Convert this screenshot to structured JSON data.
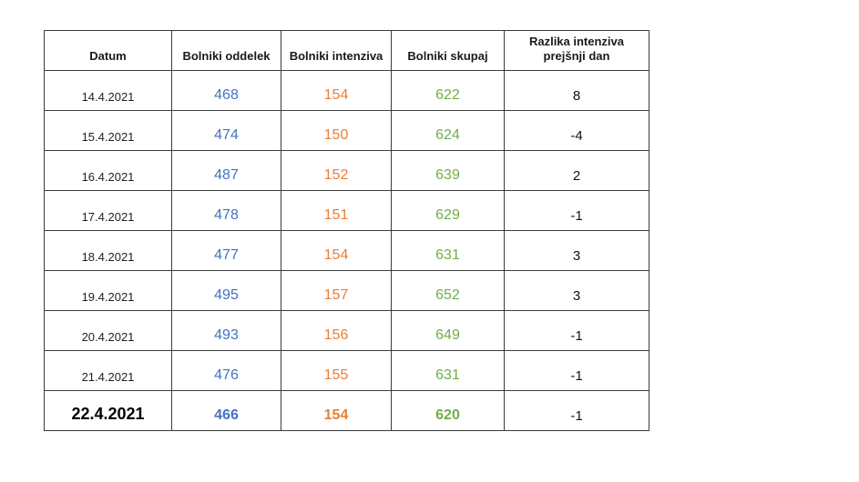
{
  "table": {
    "headers": [
      "Datum",
      "Bolniki oddelek",
      "Bolniki intenziva",
      "Bolniki skupaj",
      "Razlika intenziva prejšnji dan"
    ],
    "rows": [
      {
        "datum": "14.4.2021",
        "oddelek": "468",
        "intenziva": "154",
        "skupaj": "622",
        "razlika": "8"
      },
      {
        "datum": "15.4.2021",
        "oddelek": "474",
        "intenziva": "150",
        "skupaj": "624",
        "razlika": "-4"
      },
      {
        "datum": "16.4.2021",
        "oddelek": "487",
        "intenziva": "152",
        "skupaj": "639",
        "razlika": "2"
      },
      {
        "datum": "17.4.2021",
        "oddelek": "478",
        "intenziva": "151",
        "skupaj": "629",
        "razlika": "-1"
      },
      {
        "datum": "18.4.2021",
        "oddelek": "477",
        "intenziva": "154",
        "skupaj": "631",
        "razlika": "3"
      },
      {
        "datum": "19.4.2021",
        "oddelek": "495",
        "intenziva": "157",
        "skupaj": "652",
        "razlika": "3"
      },
      {
        "datum": "20.4.2021",
        "oddelek": "493",
        "intenziva": "156",
        "skupaj": "649",
        "razlika": "-1"
      },
      {
        "datum": "21.4.2021",
        "oddelek": "476",
        "intenziva": "155",
        "skupaj": "631",
        "razlika": "-1"
      },
      {
        "datum": "22.4.2021",
        "oddelek": "466",
        "intenziva": "154",
        "skupaj": "620",
        "razlika": "-1"
      }
    ]
  },
  "colors": {
    "oddelek": "#4472c4",
    "intenziva": "#ed7d31",
    "skupaj": "#70ad47",
    "border": "#3c3c3c"
  }
}
